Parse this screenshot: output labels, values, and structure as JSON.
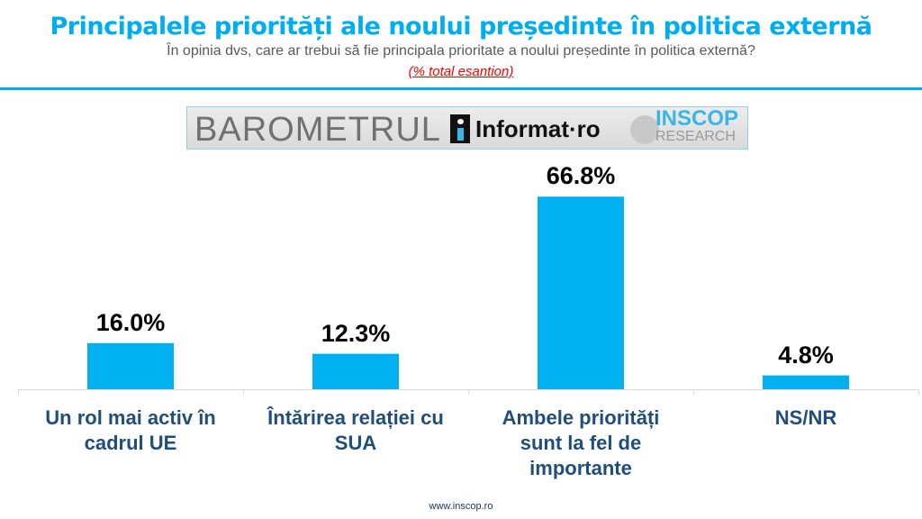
{
  "header": {
    "title": "Principalele priorități ale noului președinte în politica externă",
    "subtitle": "În opinia dvs, care ar trebui să fie principala prioritate a noului președinte în politica externă?",
    "note": "(% total esantion)"
  },
  "logo": {
    "barometrul": "BAROMETRUL",
    "informat": "Informat·ro",
    "inscop": "INSCOP",
    "research": "RESEARCH"
  },
  "colors": {
    "bar": "#00b0f0",
    "title": "#00aeef",
    "category": "#1f4e79"
  },
  "chart_data": {
    "type": "bar",
    "title": "Principalele priorități ale noului președinte în politica externă",
    "categories": [
      "Un rol mai activ în cadrul UE",
      "Întărirea relației cu SUA",
      "Ambele priorități sunt la fel de importante",
      "NS/NR"
    ],
    "values": [
      16.0,
      12.3,
      66.8,
      4.8
    ],
    "labels": [
      "16.0%",
      "12.3%",
      "66.8%",
      "4.8%"
    ],
    "xlabel": "",
    "ylabel": "",
    "ylim": [
      0,
      70
    ],
    "grid": false,
    "legend": "none"
  },
  "footer": "www.inscop.ro"
}
